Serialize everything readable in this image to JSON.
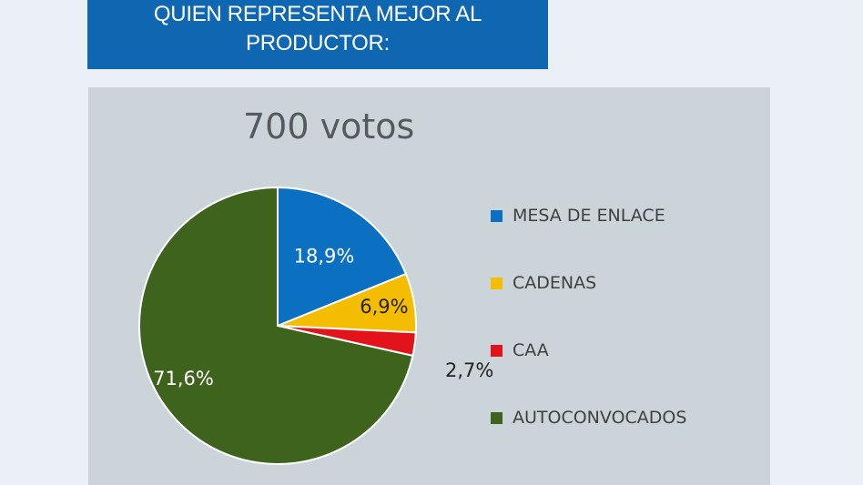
{
  "banner": {
    "line1": "QUIEN REPRESENTA MEJOR AL",
    "line2": "PRODUCTOR:",
    "color": "#0f67b1"
  },
  "chart_data": {
    "type": "pie",
    "title": "700 votos",
    "start": "12 o'clock, clockwise",
    "legend_position": "right",
    "slices": [
      {
        "name": "MESA DE ENLACE",
        "value": 18.9,
        "label": "18,9%",
        "color": "#0b6fc2",
        "label_color": "#ffffff"
      },
      {
        "name": "CADENAS",
        "value": 6.9,
        "label": "6,9%",
        "color": "#f5bd00",
        "label_color": "#222222"
      },
      {
        "name": "CAA",
        "value": 2.7,
        "label": "2,7%",
        "color": "#e3131b",
        "label_color": "#222222"
      },
      {
        "name": "AUTOCONVOCADOS",
        "value": 71.6,
        "label": "71,6%",
        "color": "#3e631c",
        "label_color": "#ffffff"
      }
    ]
  }
}
